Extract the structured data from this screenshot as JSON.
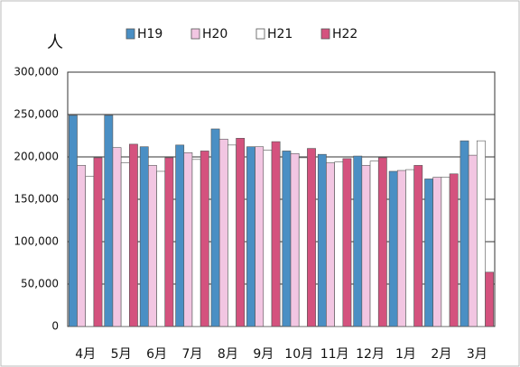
{
  "chart_data": {
    "type": "bar",
    "y_label": "人",
    "categories": [
      "4月",
      "5月",
      "6月",
      "7月",
      "8月",
      "9月",
      "10月",
      "11月",
      "12月",
      "1月",
      "2月",
      "3月"
    ],
    "series": [
      {
        "name": "H19",
        "color": "#4a8fc4",
        "values": [
          249000,
          249000,
          212000,
          214000,
          233000,
          212000,
          207000,
          203000,
          201000,
          183000,
          174000,
          219000
        ]
      },
      {
        "name": "H20",
        "color": "#f2c6e2",
        "values": [
          190000,
          211000,
          190000,
          205000,
          221000,
          212000,
          204000,
          193000,
          190000,
          184000,
          176000,
          202000
        ]
      },
      {
        "name": "H21",
        "color": "#ffffff",
        "values": [
          177000,
          193000,
          183000,
          197000,
          214000,
          208000,
          199000,
          194000,
          195000,
          185000,
          176000,
          219000
        ]
      },
      {
        "name": "H22",
        "color": "#d4527e",
        "values": [
          199000,
          215000,
          199000,
          207000,
          222000,
          218000,
          210000,
          198000,
          199000,
          190000,
          180000,
          64000
        ]
      }
    ],
    "ylim": [
      0,
      300000
    ],
    "yticks": [
      0,
      {
        "value": 50000,
        "label": "50,000"
      },
      {
        "value": 100000,
        "label": "100,000"
      },
      {
        "value": 150000,
        "label": "150,000"
      },
      {
        "value": 200000,
        "label": "200,000"
      },
      {
        "value": 250000,
        "label": "250,000"
      },
      {
        "value": 300000,
        "label": "300,000"
      }
    ],
    "grid": true
  }
}
